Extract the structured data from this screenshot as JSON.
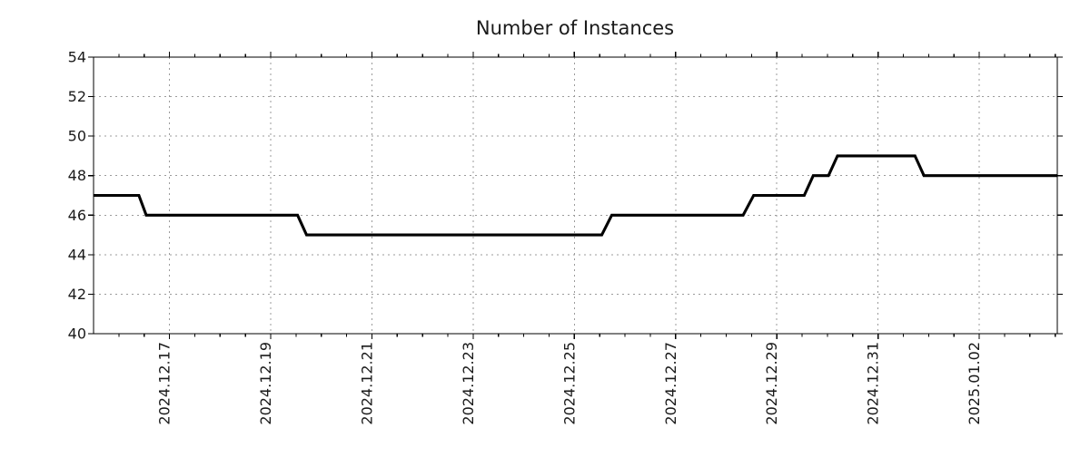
{
  "chart_data": {
    "type": "line",
    "title": "Number of Instances",
    "xlabel": "",
    "ylabel": "",
    "ylim": [
      40,
      54
    ],
    "yticks": [
      40,
      42,
      44,
      46,
      48,
      50,
      52,
      54
    ],
    "x_domain": [
      "2024-12-15 12:00",
      "2025-01-03 13:00"
    ],
    "xticks": [
      {
        "label": "2024.12.17",
        "date": "2024-12-17"
      },
      {
        "label": "2024.12.19",
        "date": "2024-12-19"
      },
      {
        "label": "2024.12.21",
        "date": "2024-12-21"
      },
      {
        "label": "2024.12.23",
        "date": "2024-12-23"
      },
      {
        "label": "2024.12.25",
        "date": "2024-12-25"
      },
      {
        "label": "2024.12.27",
        "date": "2024-12-27"
      },
      {
        "label": "2024.12.29",
        "date": "2024-12-29"
      },
      {
        "label": "2024.12.31",
        "date": "2024-12-31"
      },
      {
        "label": "2025.01.02",
        "date": "2025-01-02"
      }
    ],
    "minor_xtick_hours": 12,
    "grid": true,
    "legend": false,
    "series": [
      {
        "name": "Number of Instances",
        "color": "#000000",
        "points": [
          [
            "2024-12-15 12:00",
            47
          ],
          [
            "2024-12-16 09:30",
            47
          ],
          [
            "2024-12-16 13:00",
            46
          ],
          [
            "2024-12-19 12:45",
            46
          ],
          [
            "2024-12-19 17:00",
            45
          ],
          [
            "2024-12-25 13:00",
            45
          ],
          [
            "2024-12-25 17:45",
            46
          ],
          [
            "2024-12-28 08:00",
            46
          ],
          [
            "2024-12-28 13:00",
            47
          ],
          [
            "2024-12-29 13:00",
            47
          ],
          [
            "2024-12-29 17:15",
            48
          ],
          [
            "2024-12-30 00:30",
            48
          ],
          [
            "2024-12-30 04:45",
            49
          ],
          [
            "2024-12-31 17:30",
            49
          ],
          [
            "2024-12-31 21:45",
            48
          ],
          [
            "2025-01-03 13:00",
            48
          ]
        ]
      }
    ]
  },
  "styles": {
    "line_color": "#000000",
    "grid_color": "#9b9b9b",
    "axis_color": "#000000",
    "text_color": "#1a1a1a",
    "background": "#ffffff"
  }
}
